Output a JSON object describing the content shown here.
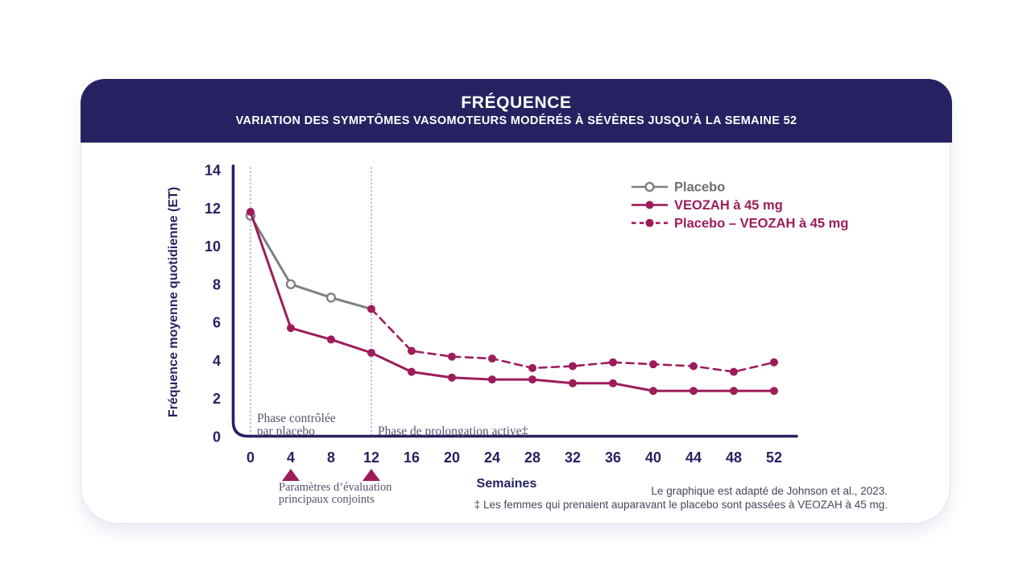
{
  "header": {
    "title": "FRÉQUENCE",
    "subtitle": "VARIATION DES SYMPTÔMES VASOMOTEURS MODÉRÉS À SÉVÈRES JUSQU’À LA SEMAINE 52"
  },
  "colors": {
    "header-bg": "#262262",
    "navy": "#262262",
    "maroon": "#9D1D5B",
    "gray-line": "#7E8084",
    "gray-text": "#6D6E71",
    "annotation": "#53546B",
    "footnote": "#45465A",
    "dotted-line": "#A8AACD",
    "card-border": "#E3E4F1"
  },
  "chart_data": {
    "type": "line",
    "xlabel": "Semaines",
    "ylabel": "Fréquence moyenne quotidienne (ET)",
    "ylim": [
      0,
      14
    ],
    "y_ticks": [
      0,
      2,
      4,
      6,
      8,
      10,
      12,
      14
    ],
    "x_ticks": [
      0,
      4,
      8,
      12,
      16,
      20,
      24,
      28,
      32,
      36,
      40,
      44,
      48,
      52
    ],
    "grid": false,
    "legend_position": "top-right",
    "series": [
      {
        "name": "Placebo",
        "x": [
          0,
          4,
          8,
          12
        ],
        "values": [
          11.6,
          8.0,
          7.3,
          6.7
        ],
        "color": "#7E8084",
        "label_color": "#6D6E71",
        "marker": "open",
        "marker_weeks": [
          0,
          4,
          8
        ],
        "dashed": false
      },
      {
        "name": "VEOZAH à 45 mg",
        "x": [
          0,
          4,
          8,
          12,
          16,
          20,
          24,
          28,
          32,
          36,
          40,
          44,
          48,
          52
        ],
        "values": [
          11.8,
          5.7,
          5.1,
          4.4,
          3.4,
          3.1,
          3.0,
          3.0,
          2.8,
          2.8,
          2.4,
          2.4,
          2.4,
          2.4
        ],
        "color": "#9D1D5B",
        "marker": "filled",
        "dashed": false
      },
      {
        "name": "Placebo – VEOZAH à 45 mg",
        "x": [
          12,
          16,
          20,
          24,
          28,
          32,
          36,
          40,
          44,
          48,
          52
        ],
        "values": [
          6.7,
          4.5,
          4.2,
          4.1,
          3.6,
          3.7,
          3.9,
          3.8,
          3.7,
          3.4,
          3.9
        ],
        "color": "#9D1D5B",
        "marker": "filled",
        "dashed": true
      }
    ],
    "annotations": {
      "phase1_line1": "Phase contrôlée",
      "phase1_line2": "par placebo",
      "phase2": "Phase de prolongation active‡",
      "coprimary_line1": "Paramètres d’évaluation",
      "coprimary_line2": "principaux conjoints",
      "reference_weeks": [
        0,
        12
      ],
      "triangle_weeks": [
        4,
        12
      ]
    }
  },
  "footnotes": {
    "adapted": "Le graphique est adapté de Johnson et al., 2023.",
    "dagger": "‡ Les femmes qui prenaient auparavant le placebo sont passées à VEOZAH à 45 mg."
  }
}
